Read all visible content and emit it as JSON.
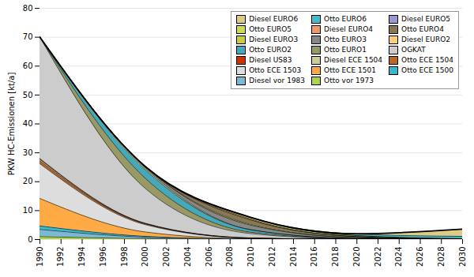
{
  "chart_data": {
    "type": "area",
    "stacked": true,
    "ylabel": "PKW HC-Emissionen [kt/a]",
    "x": [
      1990,
      2000,
      2010,
      2020,
      2030
    ],
    "xlim": [
      1990,
      2030
    ],
    "xticks": [
      1990,
      1992,
      1994,
      1996,
      1998,
      2000,
      2002,
      2004,
      2006,
      2008,
      2010,
      2012,
      2014,
      2016,
      2018,
      2020,
      2022,
      2024,
      2026,
      2028,
      2030
    ],
    "ylim": [
      0,
      80
    ],
    "yticks": [
      0,
      10,
      20,
      30,
      40,
      50,
      60,
      70,
      80
    ],
    "grid": true,
    "legend": "upper right",
    "series": [
      {
        "name": "Otto vor 1973",
        "color": "#aad44a",
        "values": [
          1.0,
          0.3,
          0.05,
          0.01,
          0.0
        ]
      },
      {
        "name": "Diesel vor 1983",
        "color": "#7ab8d4",
        "values": [
          2.5,
          0.5,
          0.05,
          0.01,
          0.0
        ]
      },
      {
        "name": "Otto ECE 1500",
        "color": "#33bbcc",
        "values": [
          1.2,
          0.3,
          0.04,
          0.01,
          0.0
        ]
      },
      {
        "name": "Otto ECE 1501",
        "color": "#ffaa44",
        "values": [
          9.5,
          1.5,
          0.1,
          0.01,
          0.0
        ]
      },
      {
        "name": "Otto ECE 1503",
        "color": "#dddddd",
        "values": [
          12.0,
          2.5,
          0.2,
          0.02,
          0.0
        ]
      },
      {
        "name": "Otto ECE 1504",
        "color": "#bb6622",
        "values": [
          1.0,
          0.3,
          0.05,
          0.01,
          0.0
        ]
      },
      {
        "name": "Diesel ECE 1504",
        "color": "#cccc99",
        "values": [
          0.5,
          0.1,
          0.02,
          0.0,
          0.0
        ]
      },
      {
        "name": "Diesel US83",
        "color": "#cc3300",
        "values": [
          0.3,
          0.1,
          0.02,
          0.01,
          0.01
        ]
      },
      {
        "name": "OGKAT",
        "color": "#cccccc",
        "values": [
          42.0,
          12.0,
          1.5,
          0.1,
          0.02
        ]
      },
      {
        "name": "Otto EURO1",
        "color": "#999966",
        "values": [
          0.0,
          3.5,
          0.5,
          0.05,
          0.01
        ]
      },
      {
        "name": "Otto EURO2",
        "color": "#44aabb",
        "values": [
          0.0,
          3.0,
          0.8,
          0.1,
          0.01
        ]
      },
      {
        "name": "Diesel EURO2",
        "color": "#ffcc77",
        "values": [
          0.0,
          0.5,
          0.1,
          0.01,
          0.0
        ]
      },
      {
        "name": "Otto EURO3",
        "color": "#888888",
        "values": [
          0.0,
          0.5,
          1.5,
          0.3,
          0.05
        ]
      },
      {
        "name": "Diesel EURO3",
        "color": "#cccc44",
        "values": [
          0.0,
          0.1,
          0.3,
          0.05,
          0.01
        ]
      },
      {
        "name": "Otto EURO4",
        "color": "#887755",
        "values": [
          0.0,
          0.0,
          1.5,
          0.3,
          0.05
        ]
      },
      {
        "name": "Diesel EURO4",
        "color": "#ee9966",
        "values": [
          0.0,
          0.0,
          0.3,
          0.05,
          0.01
        ]
      },
      {
        "name": "Otto EURO5",
        "color": "#ccdd55",
        "values": [
          0.0,
          0.0,
          0.5,
          0.3,
          0.1
        ]
      },
      {
        "name": "Diesel EURO5",
        "color": "#9999cc",
        "values": [
          0.0,
          0.0,
          0.1,
          0.05,
          0.02
        ]
      },
      {
        "name": "Otto EURO6",
        "color": "#44bbcc",
        "values": [
          0.0,
          0.0,
          0.0,
          0.5,
          0.8
        ]
      },
      {
        "name": "Diesel EURO6",
        "color": "#ddcc88",
        "values": [
          0.0,
          0.0,
          0.0,
          0.1,
          2.5
        ]
      }
    ]
  }
}
